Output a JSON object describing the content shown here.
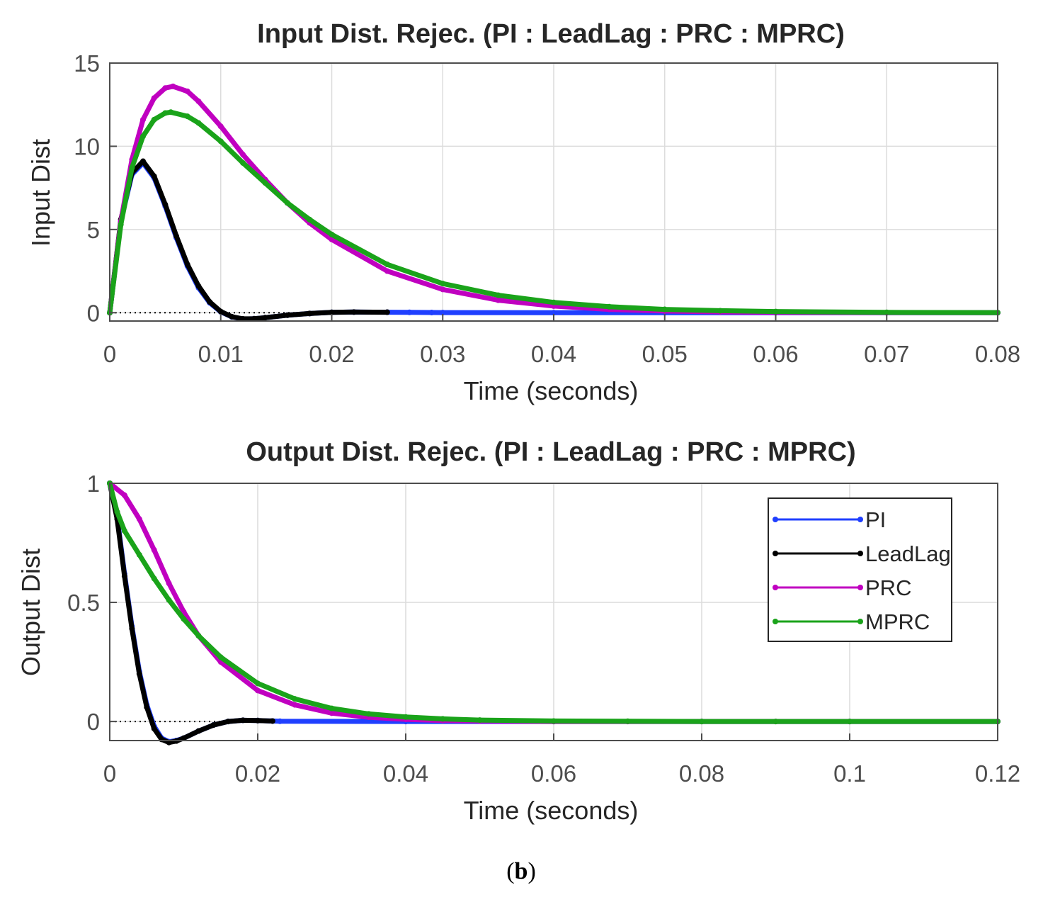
{
  "caption": {
    "open": "(",
    "letter": "b",
    "close": ")"
  },
  "colors": {
    "PI": "#1f3fff",
    "LeadLag": "#000000",
    "PRC": "#c000c0",
    "MPRC": "#1aa31a"
  },
  "chart_data": [
    {
      "type": "line",
      "title": "Input Dist. Rejec. (PI : LeadLag : PRC : MPRC)",
      "xlabel": "Time (seconds)",
      "ylabel": "Input Dist",
      "xlim": [
        0,
        0.08
      ],
      "ylim": [
        -0.5,
        15
      ],
      "xticks": [
        0,
        0.01,
        0.02,
        0.03,
        0.04,
        0.05,
        0.06,
        0.07,
        0.08
      ],
      "xtick_labels": [
        "0",
        "0.01",
        "0.02",
        "0.03",
        "0.04",
        "0.05",
        "0.06",
        "0.07",
        "0.08"
      ],
      "yticks": [
        0,
        5,
        10,
        15
      ],
      "ytick_labels": [
        "0",
        "5",
        "10",
        "15"
      ],
      "grid": true,
      "reference_line": 0,
      "series": [
        {
          "name": "PI",
          "x": [
            0,
            0.001,
            0.002,
            0.003,
            0.004,
            0.005,
            0.006,
            0.007,
            0.008,
            0.009,
            0.01,
            0.011,
            0.012,
            0.013,
            0.014,
            0.016,
            0.018,
            0.02,
            0.022,
            0.025,
            0.027,
            0.029,
            0.03,
            0.04,
            0.05,
            0.06,
            0.07,
            0.08
          ],
          "y": [
            0,
            5.5,
            8.3,
            9.0,
            8.1,
            6.4,
            4.5,
            2.8,
            1.5,
            0.6,
            0.05,
            -0.25,
            -0.38,
            -0.36,
            -0.3,
            -0.15,
            -0.05,
            0.02,
            0.04,
            0.03,
            0.02,
            0.01,
            0.005,
            0,
            0,
            0,
            0,
            0
          ]
        },
        {
          "name": "LeadLag",
          "x": [
            0,
            0.001,
            0.002,
            0.003,
            0.004,
            0.005,
            0.006,
            0.007,
            0.008,
            0.009,
            0.01,
            0.011,
            0.012,
            0.013,
            0.014,
            0.016,
            0.018,
            0.02,
            0.022,
            0.025
          ],
          "y": [
            0,
            5.6,
            8.4,
            9.1,
            8.2,
            6.5,
            4.6,
            2.9,
            1.6,
            0.65,
            0.07,
            -0.24,
            -0.37,
            -0.36,
            -0.3,
            -0.15,
            -0.05,
            0.02,
            0.04,
            0.03
          ]
        },
        {
          "name": "PRC",
          "x": [
            0,
            0.001,
            0.002,
            0.003,
            0.004,
            0.005,
            0.0057,
            0.007,
            0.008,
            0.01,
            0.012,
            0.014,
            0.016,
            0.018,
            0.02,
            0.025,
            0.03,
            0.035,
            0.04,
            0.045,
            0.05,
            0.055,
            0.06,
            0.07,
            0.08
          ],
          "y": [
            0,
            5.5,
            9.2,
            11.6,
            12.9,
            13.5,
            13.6,
            13.3,
            12.7,
            11.2,
            9.5,
            8.0,
            6.6,
            5.4,
            4.4,
            2.5,
            1.4,
            0.75,
            0.4,
            0.2,
            0.1,
            0.05,
            0.02,
            0.005,
            0
          ]
        },
        {
          "name": "MPRC",
          "x": [
            0,
            0.001,
            0.002,
            0.003,
            0.004,
            0.005,
            0.0055,
            0.007,
            0.008,
            0.01,
            0.012,
            0.014,
            0.016,
            0.018,
            0.02,
            0.025,
            0.03,
            0.035,
            0.04,
            0.045,
            0.05,
            0.055,
            0.06,
            0.07,
            0.08
          ],
          "y": [
            0,
            5.3,
            8.7,
            10.6,
            11.6,
            12.0,
            12.05,
            11.8,
            11.4,
            10.3,
            9.0,
            7.8,
            6.6,
            5.6,
            4.7,
            2.9,
            1.75,
            1.05,
            0.62,
            0.36,
            0.2,
            0.12,
            0.07,
            0.02,
            0.005
          ]
        }
      ]
    },
    {
      "type": "line",
      "title": "Output Dist. Rejec. (PI : LeadLag : PRC : MPRC)",
      "xlabel": "Time (seconds)",
      "ylabel": "Output Dist",
      "xlim": [
        0,
        0.12
      ],
      "ylim": [
        -0.08,
        1
      ],
      "xticks": [
        0,
        0.02,
        0.04,
        0.06,
        0.08,
        0.1,
        0.12
      ],
      "xtick_labels": [
        "0",
        "0.02",
        "0.04",
        "0.06",
        "0.08",
        "0.1",
        "0.12"
      ],
      "yticks": [
        0,
        0.5,
        1
      ],
      "ytick_labels": [
        "0",
        "0.5",
        "1"
      ],
      "grid": true,
      "reference_line": 0,
      "legend_position": "top-right",
      "series": [
        {
          "name": "PI",
          "x": [
            0,
            0.001,
            0.002,
            0.003,
            0.004,
            0.005,
            0.006,
            0.007,
            0.008,
            0.009,
            0.01,
            0.012,
            0.014,
            0.016,
            0.018,
            0.02,
            0.022,
            0.023,
            0.04,
            0.06,
            0.08,
            0.1,
            0.12
          ],
          "y": [
            1,
            0.86,
            0.62,
            0.4,
            0.21,
            0.07,
            -0.02,
            -0.07,
            -0.085,
            -0.08,
            -0.07,
            -0.04,
            -0.015,
            0.0,
            0.005,
            0.004,
            0.002,
            0.001,
            0,
            0,
            0,
            0,
            0
          ]
        },
        {
          "name": "LeadLag",
          "x": [
            0,
            0.001,
            0.002,
            0.003,
            0.004,
            0.005,
            0.006,
            0.007,
            0.008,
            0.009,
            0.01,
            0.012,
            0.014,
            0.016,
            0.018,
            0.02,
            0.022
          ],
          "y": [
            1,
            0.85,
            0.61,
            0.39,
            0.2,
            0.06,
            -0.03,
            -0.075,
            -0.088,
            -0.082,
            -0.07,
            -0.04,
            -0.015,
            0.0,
            0.005,
            0.004,
            0.002
          ]
        },
        {
          "name": "PRC",
          "x": [
            0,
            0.002,
            0.004,
            0.006,
            0.008,
            0.01,
            0.012,
            0.015,
            0.02,
            0.025,
            0.03,
            0.035,
            0.04,
            0.045,
            0.05,
            0.06,
            0.07,
            0.08,
            0.09,
            0.1,
            0.12
          ],
          "y": [
            1,
            0.95,
            0.85,
            0.72,
            0.58,
            0.46,
            0.36,
            0.25,
            0.13,
            0.07,
            0.035,
            0.018,
            0.009,
            0.004,
            0.002,
            0,
            0,
            0,
            0,
            0,
            0
          ]
        },
        {
          "name": "MPRC",
          "x": [
            0,
            0.001,
            0.002,
            0.004,
            0.006,
            0.008,
            0.01,
            0.012,
            0.015,
            0.02,
            0.025,
            0.03,
            0.035,
            0.04,
            0.045,
            0.05,
            0.06,
            0.07,
            0.08,
            0.09,
            0.1,
            0.12
          ],
          "y": [
            1,
            0.88,
            0.8,
            0.7,
            0.6,
            0.51,
            0.43,
            0.36,
            0.27,
            0.16,
            0.095,
            0.055,
            0.032,
            0.019,
            0.011,
            0.006,
            0.002,
            0.001,
            0,
            0,
            0,
            0
          ]
        }
      ]
    }
  ]
}
